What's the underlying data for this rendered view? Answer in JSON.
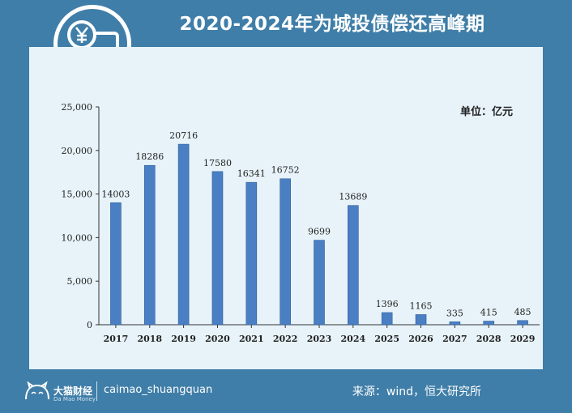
{
  "header": {
    "title": "2020-2024年为城投债偿还高峰期"
  },
  "footer": {
    "brand": "大猫财经",
    "brand_sub": "Da Mao Money",
    "handle": "caimao_shuangquan",
    "source": "来源：wind，恒大研究所"
  },
  "colors": {
    "frame": "#3f7ea8",
    "panel": "#e7f3f9",
    "bar": "#4a7fc4"
  },
  "icons": [
    "yuan-card-icon",
    "cat-logo-icon"
  ],
  "chart_data": {
    "type": "bar",
    "unit_label": "单位：亿元",
    "categories": [
      "2017",
      "2018",
      "2019",
      "2020",
      "2021",
      "2022",
      "2023",
      "2024",
      "2025",
      "2026",
      "2027",
      "2028",
      "2029"
    ],
    "values": [
      14003,
      18286,
      20716,
      17580,
      16341,
      16752,
      9699,
      13689,
      1396,
      1165,
      335,
      415,
      485
    ],
    "value_labels": [
      "14003",
      "18286",
      "20716",
      "17580",
      "16341",
      "16752",
      "9699",
      "13689",
      "1396",
      "1165",
      "335",
      "415",
      "485"
    ],
    "y_ticks": [
      0,
      5000,
      10000,
      15000,
      20000,
      25000
    ],
    "y_tick_labels": [
      "0",
      "5,000",
      "10,000",
      "15,000",
      "20,000",
      "25,000"
    ],
    "ylim": [
      0,
      25000
    ],
    "grid": false,
    "legend": "none"
  }
}
